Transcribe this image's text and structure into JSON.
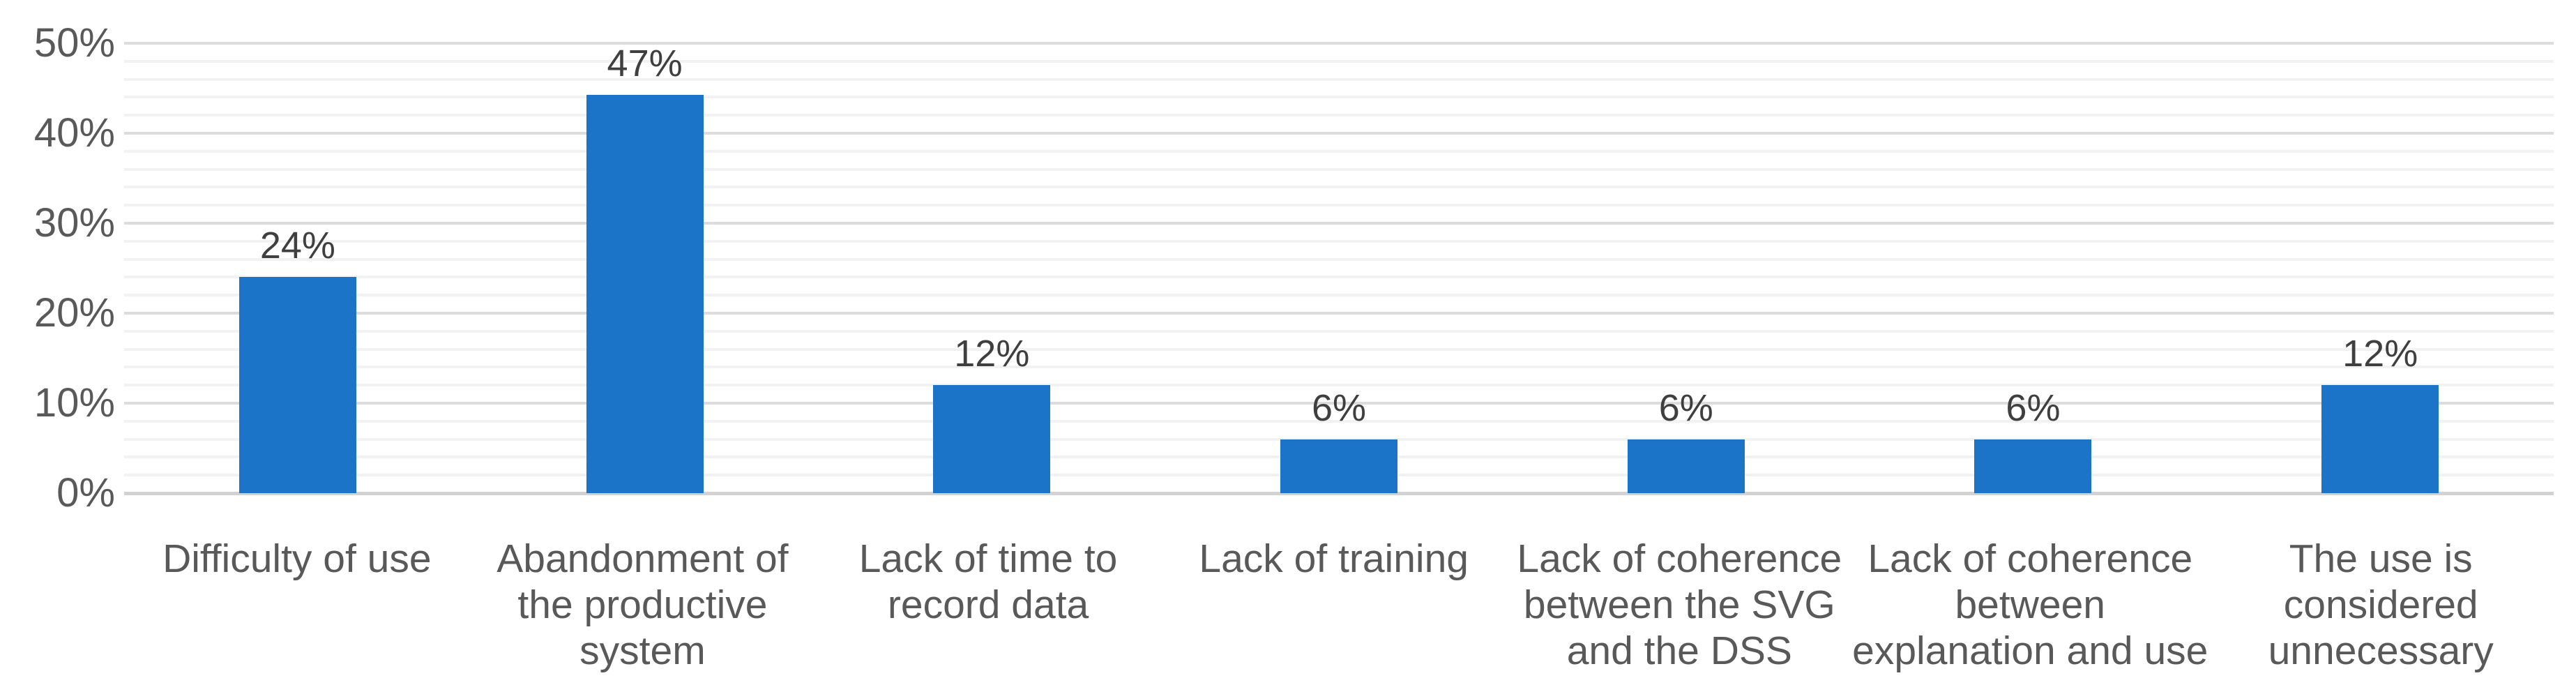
{
  "chart_data": {
    "type": "bar",
    "title": "",
    "xlabel": "",
    "ylabel": "",
    "categories": [
      "Difficulty of use",
      "Abandonment of the productive system",
      "Lack of time to record data",
      "Lack of training",
      "Lack of coherence between the SVG and the DSS",
      "Lack of coherence between explanation and use",
      "The use is considered unnecessary"
    ],
    "category_label_lines": [
      [
        "Difficulty of use"
      ],
      [
        "Abandonment of",
        "the productive",
        "system"
      ],
      [
        "Lack of time to",
        "record data"
      ],
      [
        "Lack of training"
      ],
      [
        "Lack of coherence",
        "between the SVG",
        "and the DSS"
      ],
      [
        "Lack of coherence",
        "between",
        "explanation and use"
      ],
      [
        "The use is",
        "considered",
        "unnecessary"
      ]
    ],
    "values": [
      24,
      47,
      12,
      6,
      6,
      6,
      12
    ],
    "data_labels": [
      "24%",
      "47%",
      "12%",
      "6%",
      "6%",
      "6%",
      "12%"
    ],
    "ylim": [
      0,
      50
    ],
    "y_ticks": [
      "0%",
      "10%",
      "20%",
      "30%",
      "40%",
      "50%"
    ],
    "y_major_step": 10,
    "y_minor_step": 2,
    "grid": "horizontal, major every 10% and minor every 2%",
    "legend": "none",
    "colors": {
      "bar": "#1B74C8",
      "major_gridline": "#DCDCDC",
      "minor_gridline": "#F2F2F2",
      "baseline": "#D2D2D2",
      "tick_label": "#595959",
      "category_label": "#595959",
      "data_label": "#3F3F3F",
      "background": "#FFFFFF"
    }
  }
}
